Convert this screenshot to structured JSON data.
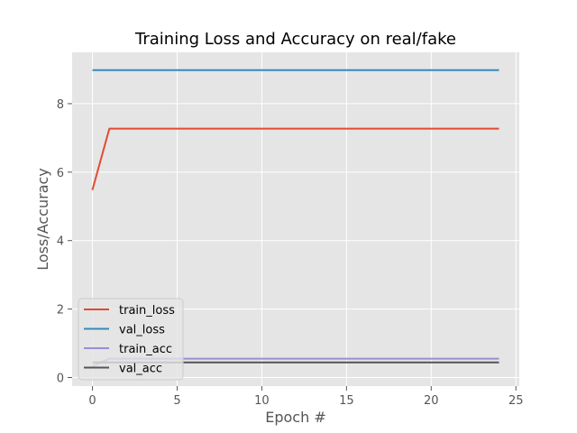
{
  "chart_data": {
    "type": "line",
    "title": "Training Loss and Accuracy on real/fake",
    "xlabel": "Epoch #",
    "ylabel": "Loss/Accuracy",
    "xlim": [
      -1.2,
      25.2
    ],
    "ylim": [
      -0.25,
      9.5
    ],
    "xticks": [
      0,
      5,
      10,
      15,
      20,
      25
    ],
    "yticks": [
      0,
      2,
      4,
      6,
      8
    ],
    "grid": true,
    "style": "ggplot",
    "legend_position": "lower-left",
    "x": [
      0,
      1,
      2,
      3,
      4,
      5,
      6,
      7,
      8,
      9,
      10,
      11,
      12,
      13,
      14,
      15,
      16,
      17,
      18,
      19,
      20,
      21,
      22,
      23,
      24
    ],
    "series": [
      {
        "name": "train_loss",
        "color": "#E24A33",
        "values": [
          5.48,
          7.27,
          7.27,
          7.27,
          7.27,
          7.27,
          7.27,
          7.27,
          7.27,
          7.27,
          7.27,
          7.27,
          7.27,
          7.27,
          7.27,
          7.27,
          7.27,
          7.27,
          7.27,
          7.27,
          7.27,
          7.27,
          7.27,
          7.27,
          7.27
        ]
      },
      {
        "name": "val_loss",
        "color": "#348ABD",
        "values": [
          8.98,
          8.98,
          8.98,
          8.98,
          8.98,
          8.98,
          8.98,
          8.98,
          8.98,
          8.98,
          8.98,
          8.98,
          8.98,
          8.98,
          8.98,
          8.98,
          8.98,
          8.98,
          8.98,
          8.98,
          8.98,
          8.98,
          8.98,
          8.98,
          8.98
        ]
      },
      {
        "name": "train_acc",
        "color": "#988ED5",
        "values": [
          0.33,
          0.55,
          0.55,
          0.55,
          0.55,
          0.55,
          0.55,
          0.55,
          0.55,
          0.55,
          0.55,
          0.55,
          0.55,
          0.55,
          0.55,
          0.55,
          0.55,
          0.55,
          0.55,
          0.55,
          0.55,
          0.55,
          0.55,
          0.55,
          0.55
        ]
      },
      {
        "name": "val_acc",
        "color": "#555555",
        "values": [
          0.44,
          0.44,
          0.44,
          0.44,
          0.44,
          0.44,
          0.44,
          0.44,
          0.44,
          0.44,
          0.44,
          0.44,
          0.44,
          0.44,
          0.44,
          0.44,
          0.44,
          0.44,
          0.44,
          0.44,
          0.44,
          0.44,
          0.44,
          0.44,
          0.44
        ]
      }
    ]
  }
}
